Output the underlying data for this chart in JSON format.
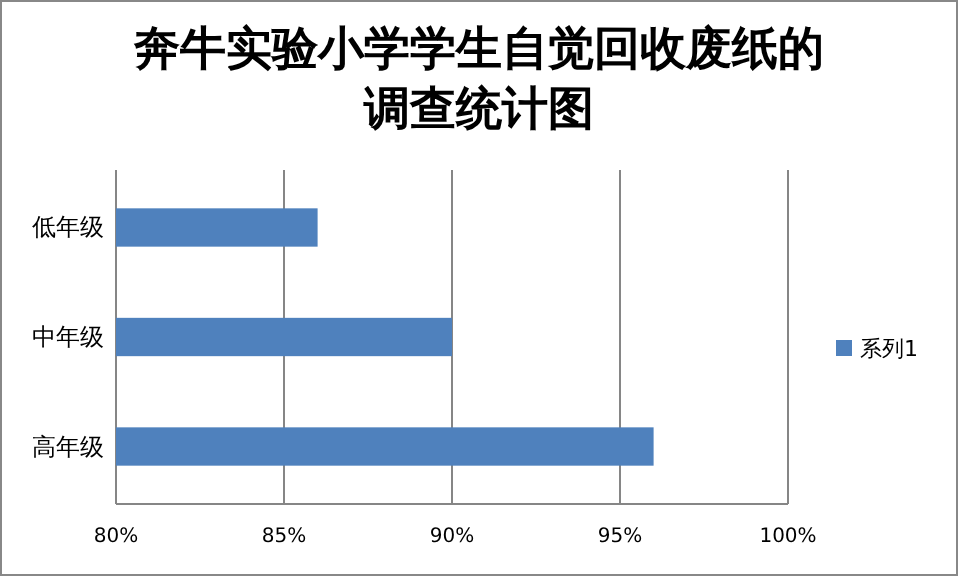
{
  "chart_data": {
    "type": "bar",
    "orientation": "horizontal",
    "title": "奔牛实验小学学生自觉回收废纸的调查统计图",
    "categories": [
      "低年级",
      "中年级",
      "高年级"
    ],
    "series": [
      {
        "name": "系列1",
        "color": "#4f81bd",
        "values": [
          86,
          90,
          96
        ]
      }
    ],
    "xlim": [
      80,
      100
    ],
    "xticks": [
      {
        "value": 80,
        "label": "80%"
      },
      {
        "value": 85,
        "label": "85%"
      },
      {
        "value": 90,
        "label": "90%"
      },
      {
        "value": 95,
        "label": "95%"
      },
      {
        "value": 100,
        "label": "100%"
      }
    ],
    "grid": "x",
    "legend": "right"
  }
}
